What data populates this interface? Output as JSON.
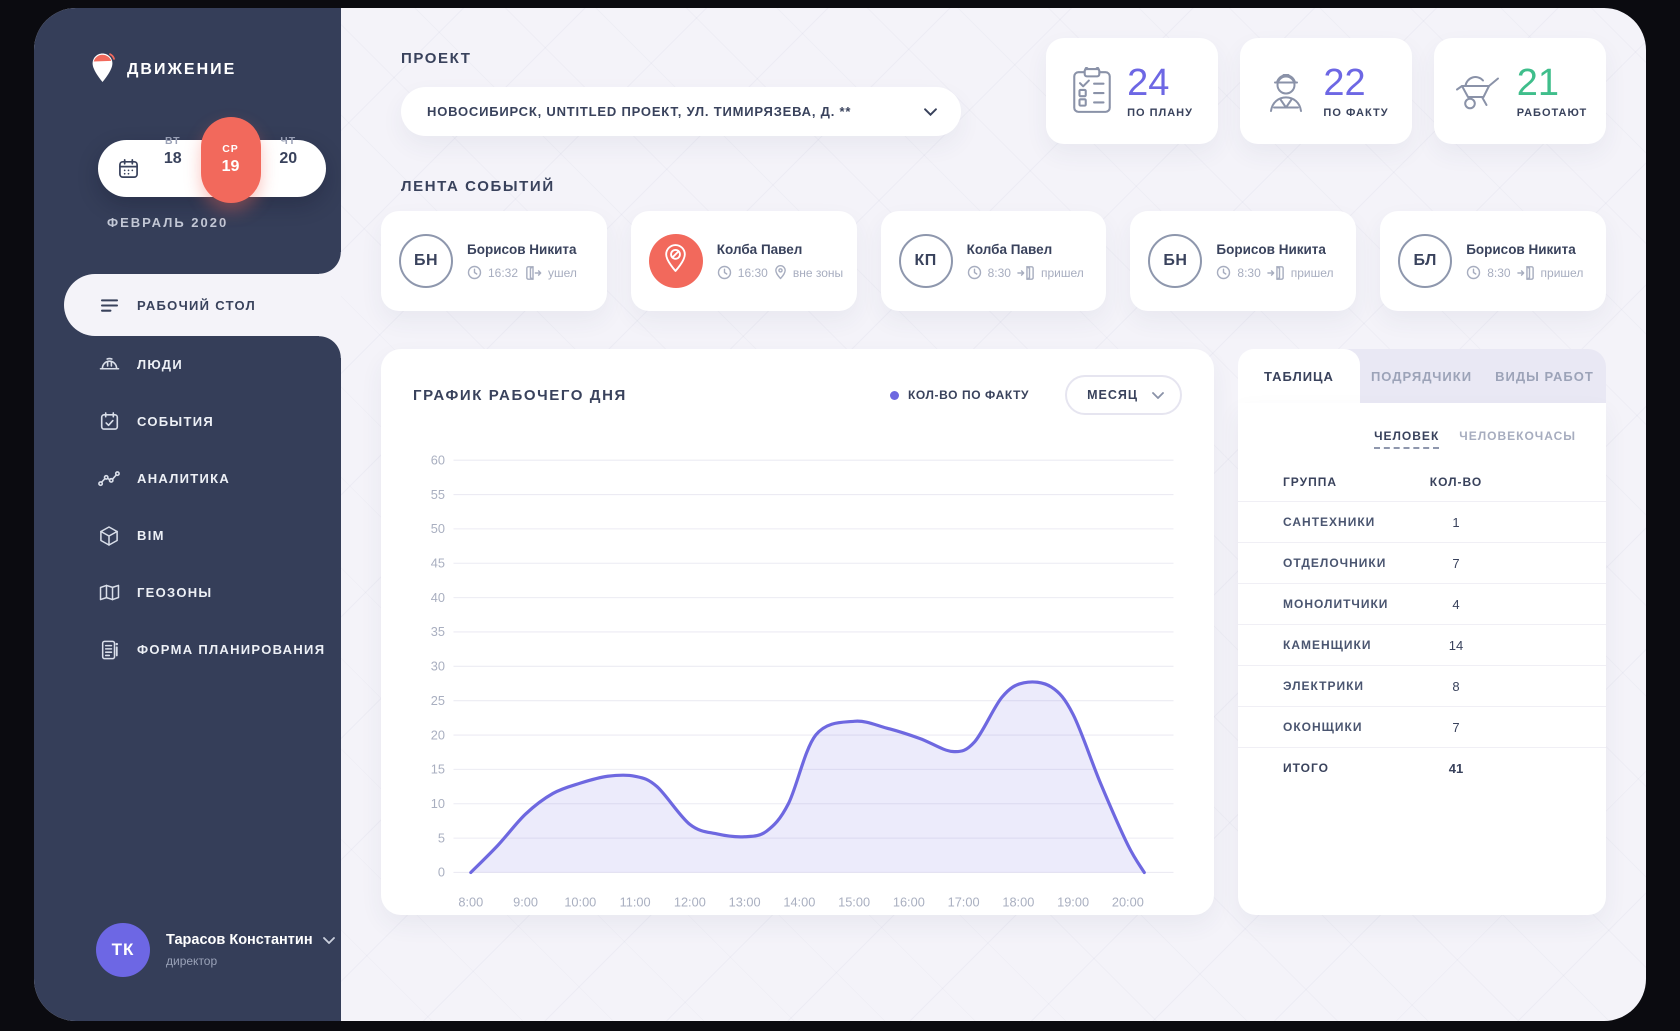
{
  "theme": {
    "sidebar_bg": "#353E59",
    "bg": "#F4F3F9",
    "accent": "#6D67E4",
    "coral": "#F2695C",
    "green": "#3FBE8B",
    "text": "#39425C",
    "muted": "#A7ADBF"
  },
  "app": {
    "name": "ДВИЖЕНИЕ",
    "logo_icon": "logo-pin-hardhat"
  },
  "sidebar": {
    "calendar": {
      "icon": "calendar",
      "days": [
        {
          "dow": "ВТ",
          "date": "18",
          "active": false
        },
        {
          "dow": "СР",
          "date": "19",
          "active": true
        },
        {
          "dow": "ЧТ",
          "date": "20",
          "active": false
        }
      ],
      "month_label": "ФЕВРАЛЬ 2020"
    },
    "menu": [
      {
        "id": "desktop",
        "label": "РАБОЧИЙ СТОЛ",
        "icon": "list-lines",
        "active": true
      },
      {
        "id": "people",
        "label": "ЛЮДИ",
        "icon": "hard-hat",
        "active": false
      },
      {
        "id": "events",
        "label": "СОБЫТИЯ",
        "icon": "calendar-check",
        "active": false
      },
      {
        "id": "analytics",
        "label": "АНАЛИТИКА",
        "icon": "line-chart",
        "active": false
      },
      {
        "id": "bim",
        "label": "BIM",
        "icon": "cube",
        "active": false
      },
      {
        "id": "geozones",
        "label": "ГЕОЗОНЫ",
        "icon": "map",
        "active": false
      },
      {
        "id": "planning",
        "label": "ФОРМА ПЛАНИРОВАНИЯ",
        "icon": "document-lines",
        "active": false
      }
    ],
    "user": {
      "initials": "ТК",
      "name": "Тарасов Константин",
      "role": "директор",
      "chevron_icon": "chevron-down"
    }
  },
  "header": {
    "project_label": "ПРОЕКТ",
    "project_value": "НОВОСИБИРСК, UNTITLED ПРОЕКТ, УЛ. ТИМИРЯЗЕВА, Д. **",
    "stats": [
      {
        "value": "24",
        "label": "ПО ПЛАНУ",
        "icon": "clipboard-checklist",
        "color": "#6D67E4"
      },
      {
        "value": "22",
        "label": "ПО ФАКТУ",
        "icon": "worker",
        "color": "#6D67E4"
      },
      {
        "value": "21",
        "label": "РАБОТАЮТ",
        "icon": "wheelbarrow",
        "color": "#3FBE8B"
      }
    ]
  },
  "events": {
    "title": "ЛЕНТА СОБЫТИЙ",
    "cards": [
      {
        "avatar_initials": "БН",
        "avatar_icon": null,
        "name": "Борисов Никита",
        "time": "16:32",
        "action": "ушел",
        "action_icon": "door-exit"
      },
      {
        "avatar_initials": null,
        "avatar_icon": "pin-ban",
        "name": "Колба Павел",
        "time": "16:30",
        "action": "вне зоны",
        "action_icon": "pin"
      },
      {
        "avatar_initials": "КП",
        "avatar_icon": null,
        "name": "Колба Павел",
        "time": "8:30",
        "action": "пришел",
        "action_icon": "door-enter"
      },
      {
        "avatar_initials": "БН",
        "avatar_icon": null,
        "name": "Борисов Никита",
        "time": "8:30",
        "action": "пришел",
        "action_icon": "door-enter"
      },
      {
        "avatar_initials": "БЛ",
        "avatar_icon": null,
        "name": "Борисов Никита",
        "time": "8:30",
        "action": "пришел",
        "action_icon": "door-enter"
      }
    ]
  },
  "chart_controls": {
    "period_selected": "МЕСЯЦ",
    "period_icon": "chevron-down"
  },
  "chart_data": {
    "type": "area",
    "title": "ГРАФИК РАБОЧЕГО ДНЯ",
    "series": [
      {
        "name": "КОЛ-ВО ПО ФАКТУ",
        "color": "#6E68E0",
        "values": [
          0,
          4,
          8.5,
          11.5,
          13,
          14,
          14,
          12.5,
          7,
          5.6,
          5.2,
          6,
          10,
          20,
          22,
          21,
          19.5,
          17.6,
          19,
          25.5,
          27.6,
          27,
          23,
          13,
          4,
          0
        ]
      }
    ],
    "x": [
      8,
      8.5,
      9,
      9.5,
      10,
      10.5,
      11,
      11.4,
      12,
      12.5,
      13,
      13.4,
      13.8,
      14.3,
      15,
      15.6,
      16.2,
      16.8,
      17.2,
      17.7,
      18.1,
      18.6,
      19,
      19.5,
      20,
      20.3
    ],
    "x_tick_labels": [
      "8:00",
      "9:00",
      "10:00",
      "11:00",
      "12:00",
      "13:00",
      "14:00",
      "15:00",
      "16:00",
      "17:00",
      "18:00",
      "19:00",
      "20:00"
    ],
    "y_ticks": [
      0,
      5,
      10,
      15,
      20,
      25,
      30,
      35,
      40,
      45,
      50,
      55,
      60
    ],
    "ylim": [
      0,
      60
    ],
    "xlabel": "",
    "ylabel": "",
    "grid": "horizontal-only",
    "legend_position": "top-right",
    "fill_opacity": 0.13
  },
  "panel": {
    "tabs": [
      {
        "label": "ТАБЛИЦА",
        "active": true
      },
      {
        "label": "ПОДРЯДЧИКИ",
        "active": false
      },
      {
        "label": "ВИДЫ РАБОТ",
        "active": false
      }
    ],
    "toggle": [
      {
        "label": "ЧЕЛОВЕК",
        "active": true
      },
      {
        "label": "ЧЕЛОВЕКОЧАСЫ",
        "active": false
      }
    ],
    "columns": [
      "ГРУППА",
      "КОЛ-ВО"
    ],
    "rows": [
      {
        "group": "САНТЕХНИКИ",
        "count": "1"
      },
      {
        "group": "ОТДЕЛОЧНИКИ",
        "count": "7"
      },
      {
        "group": "МОНОЛИТЧИКИ",
        "count": "4"
      },
      {
        "group": "КАМЕНЩИКИ",
        "count": "14"
      },
      {
        "group": "ЭЛЕКТРИКИ",
        "count": "8"
      },
      {
        "group": "ОКОНЩИКИ",
        "count": "7"
      }
    ],
    "total": {
      "group": "ИТОГО",
      "count": "41"
    }
  }
}
